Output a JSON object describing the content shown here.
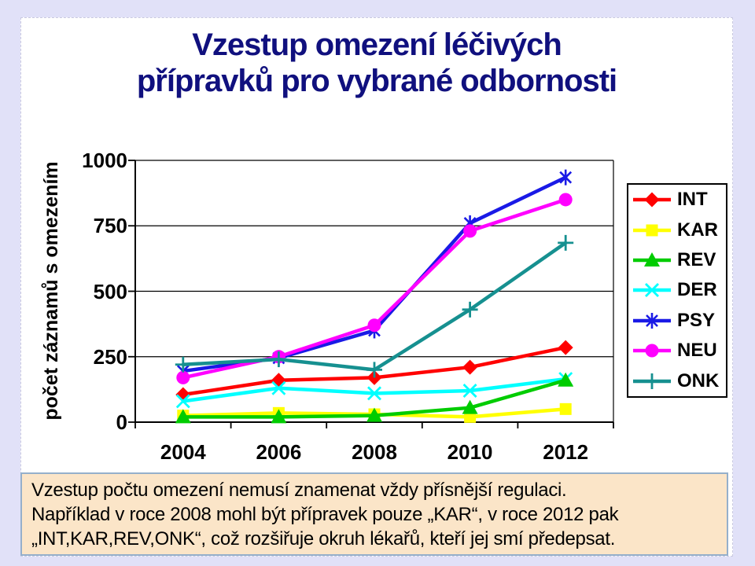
{
  "page": {
    "background": "#E1E1F8",
    "slide_background": "#FFFFFF"
  },
  "slide": {
    "title_line1": "Vzestup omezení léčivých",
    "title_line2": "přípravků pro vybrané odbornosti",
    "title_color": "#10107E"
  },
  "chart_data": {
    "type": "line",
    "title": "",
    "xlabel": "",
    "ylabel": "počet záznamů s omezením",
    "ylim": [
      0,
      1000
    ],
    "yticks": [
      0,
      250,
      500,
      750,
      1000
    ],
    "grid": true,
    "legend_position": "right",
    "categories": [
      "2004",
      "2006",
      "2008",
      "2010",
      "2012"
    ],
    "series": [
      {
        "name": "INT",
        "color": "#FF0000",
        "marker": "diamond",
        "values": [
          105,
          160,
          170,
          210,
          285
        ]
      },
      {
        "name": "KAR",
        "color": "#FFFF00",
        "marker": "square",
        "values": [
          25,
          35,
          30,
          20,
          50
        ]
      },
      {
        "name": "REV",
        "color": "#00CC00",
        "marker": "triangle",
        "values": [
          20,
          20,
          25,
          55,
          160
        ]
      },
      {
        "name": "DER",
        "color": "#00FFFF",
        "marker": "x",
        "values": [
          80,
          130,
          110,
          120,
          165
        ]
      },
      {
        "name": "PSY",
        "color": "#1A1AE6",
        "marker": "asterisk",
        "values": [
          195,
          245,
          350,
          760,
          935
        ]
      },
      {
        "name": "NEU",
        "color": "#FF00FF",
        "marker": "circle",
        "values": [
          170,
          250,
          370,
          730,
          850
        ]
      },
      {
        "name": "ONK",
        "color": "#169090",
        "marker": "plus",
        "values": [
          220,
          240,
          200,
          430,
          685
        ]
      }
    ],
    "draw_order": [
      "INT",
      "KAR",
      "DER",
      "REV",
      "PSY",
      "NEU",
      "ONK"
    ]
  },
  "note": {
    "background": "#FBE5C8",
    "border_color": "#95AFCB",
    "lines": [
      "Vzestup počtu omezení nemusí znamenat vždy přísnější regulaci.",
      "Například v roce 2008 mohl být přípravek pouze „KAR“, v roce 2012 pak",
      "„INT,KAR,REV,ONK“, což rozšiřuje okruh lékařů, kteří jej smí předepsat."
    ]
  }
}
